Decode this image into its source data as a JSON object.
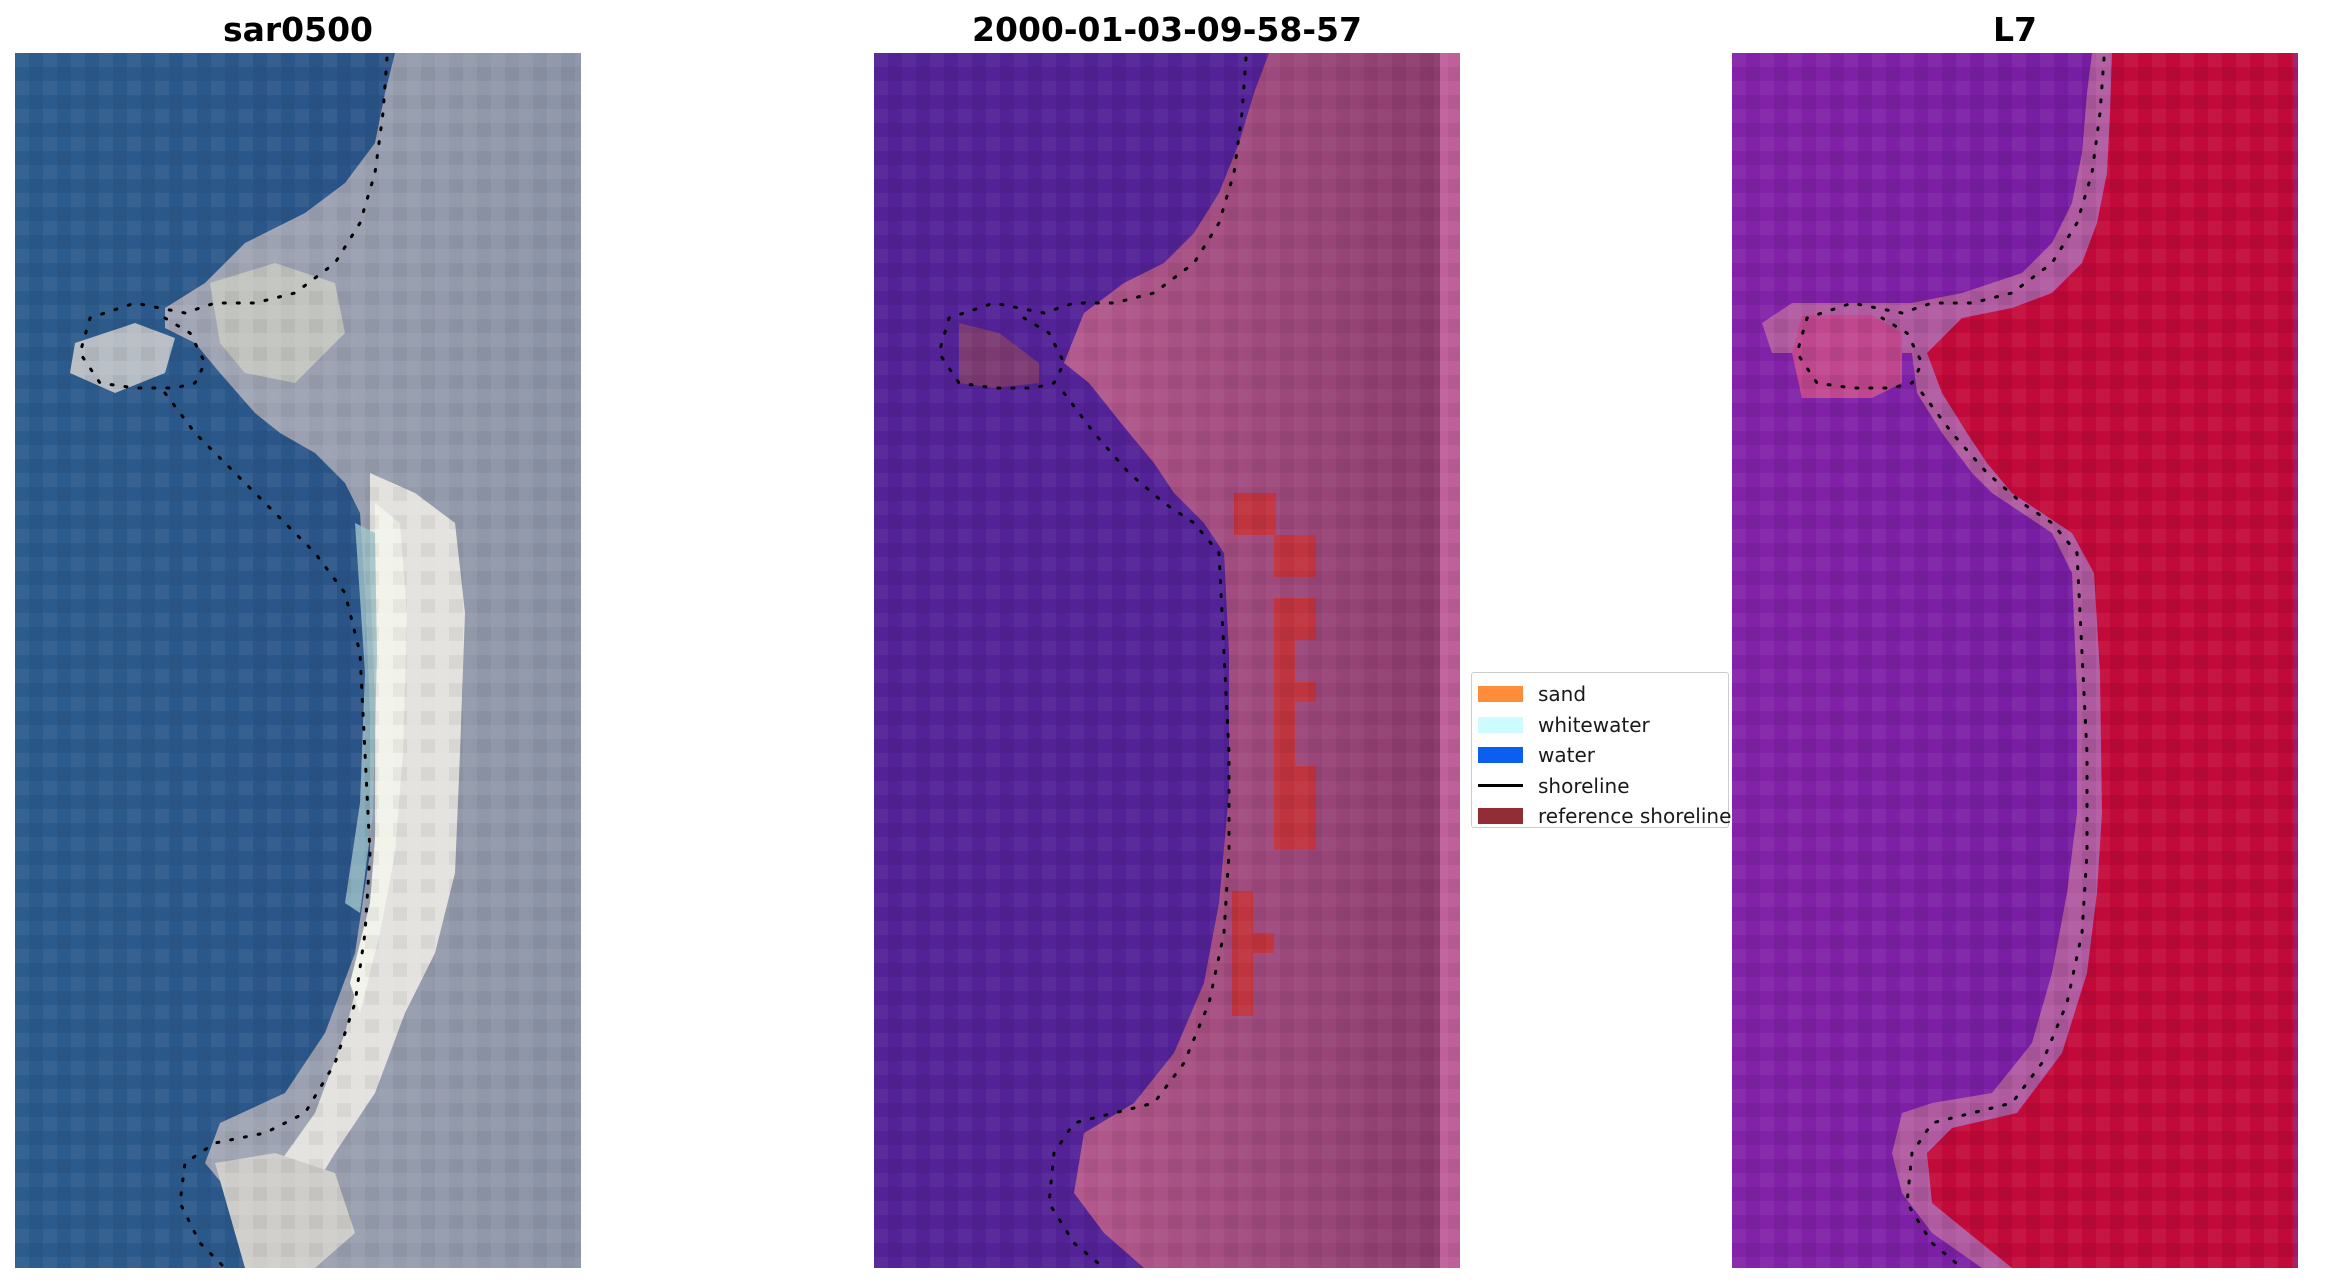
{
  "panels": [
    {
      "title": "sar0500",
      "description": "RGB satellite image of coastline"
    },
    {
      "title": "2000-01-03-09-58-57",
      "description": "classified image with sand, water, whitewater overlay"
    },
    {
      "title": "L7",
      "description": "water index image"
    }
  ],
  "legend": {
    "items": [
      {
        "label": "sand",
        "color": "#ff8c3a",
        "kind": "patch"
      },
      {
        "label": "whitewater",
        "color": "#ccfcff",
        "kind": "patch"
      },
      {
        "label": "water",
        "color": "#0a5ff0",
        "kind": "patch"
      },
      {
        "label": "shoreline",
        "color": "#000000",
        "kind": "line"
      },
      {
        "label": "reference shoreline",
        "color": "#922d35",
        "kind": "patch"
      }
    ]
  },
  "colors": {
    "sea_rgb": "#2a5a8e",
    "land_rgb": "#8b93a8",
    "beach_rgb": "#e6e4e2",
    "class_water": "#532296",
    "class_land": "#9a4a7a",
    "class_red": "#c03440",
    "index_water": "#7a1ea0",
    "index_land": "#c20a3a"
  }
}
